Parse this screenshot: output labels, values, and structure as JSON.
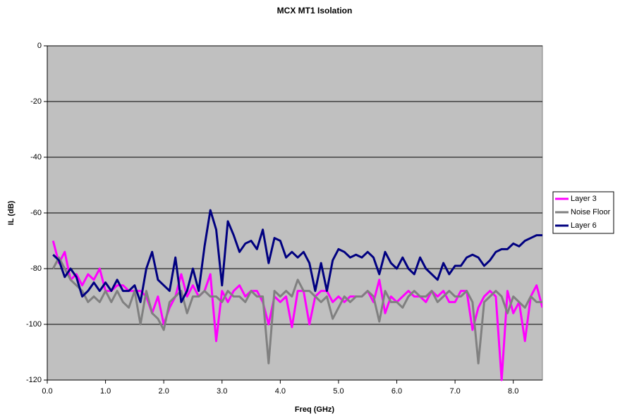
{
  "chart_data": {
    "type": "line",
    "title": "MCX MT1 Isolation",
    "x_label": "Freq (GHz)",
    "y_label": "IL (dB)",
    "x": [
      0.1,
      0.2,
      0.3,
      0.4,
      0.5,
      0.6,
      0.7,
      0.8,
      0.9,
      1.0,
      1.1,
      1.2,
      1.3,
      1.4,
      1.5,
      1.6,
      1.7,
      1.8,
      1.9,
      2.0,
      2.1,
      2.2,
      2.3,
      2.4,
      2.5,
      2.6,
      2.7,
      2.8,
      2.9,
      3.0,
      3.1,
      3.2,
      3.3,
      3.4,
      3.5,
      3.6,
      3.7,
      3.8,
      3.9,
      4.0,
      4.1,
      4.2,
      4.3,
      4.4,
      4.5,
      4.6,
      4.7,
      4.8,
      4.9,
      5.0,
      5.1,
      5.2,
      5.3,
      5.4,
      5.5,
      5.6,
      5.7,
      5.8,
      5.9,
      6.0,
      6.1,
      6.2,
      6.3,
      6.4,
      6.5,
      6.6,
      6.7,
      6.8,
      6.9,
      7.0,
      7.1,
      7.2,
      7.3,
      7.4,
      7.5,
      7.6,
      7.7,
      7.8,
      7.9,
      8.0,
      8.1,
      8.2,
      8.3,
      8.4,
      8.5
    ],
    "series": [
      {
        "name": "Layer 3",
        "color": "#ff00ff",
        "values": [
          -70,
          -78,
          -74,
          -84,
          -82,
          -86,
          -82,
          -84,
          -80,
          -88,
          -88,
          -86,
          -86,
          -88,
          -88,
          -88,
          -90,
          -96,
          -90,
          -100,
          -94,
          -90,
          -82,
          -90,
          -86,
          -90,
          -88,
          -82,
          -106,
          -88,
          -92,
          -88,
          -86,
          -90,
          -88,
          -88,
          -92,
          -100,
          -90,
          -92,
          -90,
          -101,
          -88,
          -88,
          -100,
          -90,
          -88,
          -88,
          -92,
          -90,
          -92,
          -90,
          -90,
          -90,
          -88,
          -92,
          -84,
          -96,
          -90,
          -92,
          -90,
          -88,
          -90,
          -90,
          -92,
          -88,
          -90,
          -88,
          -92,
          -92,
          -88,
          -88,
          -102,
          -94,
          -90,
          -88,
          -90,
          -120,
          -88,
          -96,
          -92,
          -106,
          -90,
          -86,
          -94
        ]
      },
      {
        "name": "Noise Floor",
        "color": "#808080",
        "values": [
          -80,
          -76,
          -80,
          -84,
          -86,
          -88,
          -92,
          -90,
          -92,
          -88,
          -92,
          -88,
          -92,
          -94,
          -88,
          -100,
          -88,
          -96,
          -98,
          -102,
          -92,
          -90,
          -88,
          -96,
          -90,
          -90,
          -88,
          -90,
          -90,
          -92,
          -88,
          -90,
          -90,
          -92,
          -88,
          -90,
          -90,
          -114,
          -88,
          -90,
          -88,
          -90,
          -84,
          -88,
          -88,
          -90,
          -92,
          -90,
          -98,
          -94,
          -90,
          -92,
          -90,
          -90,
          -88,
          -90,
          -99,
          -88,
          -92,
          -92,
          -94,
          -90,
          -88,
          -90,
          -90,
          -88,
          -92,
          -90,
          -88,
          -90,
          -90,
          -88,
          -92,
          -114,
          -92,
          -90,
          -88,
          -90,
          -96,
          -90,
          -92,
          -94,
          -90,
          -92,
          -92
        ]
      },
      {
        "name": "Layer 6",
        "color": "#000080",
        "values": [
          -75,
          -77,
          -83,
          -80,
          -83,
          -90,
          -88,
          -85,
          -88,
          -85,
          -88,
          -84,
          -88,
          -88,
          -86,
          -92,
          -80,
          -74,
          -84,
          -86,
          -88,
          -76,
          -92,
          -88,
          -80,
          -88,
          -72,
          -59,
          -66,
          -86,
          -63,
          -68,
          -74,
          -71,
          -70,
          -73,
          -66,
          -78,
          -69,
          -70,
          -76,
          -74,
          -76,
          -74,
          -78,
          -88,
          -78,
          -88,
          -77,
          -73,
          -74,
          -76,
          -75,
          -76,
          -74,
          -76,
          -82,
          -74,
          -78,
          -80,
          -76,
          -80,
          -82,
          -76,
          -80,
          -82,
          -84,
          -78,
          -82,
          -79,
          -79,
          -76,
          -75,
          -76,
          -79,
          -77,
          -74,
          -73,
          -73,
          -71,
          -72,
          -70,
          -69,
          -68,
          -68
        ]
      }
    ],
    "xlim": [
      0,
      8.5
    ],
    "ylim": [
      -120,
      0
    ],
    "xticks": [
      {
        "value": 0,
        "label": "0.0"
      },
      {
        "value": 1,
        "label": "1.0"
      },
      {
        "value": 2,
        "label": "2.0"
      },
      {
        "value": 3,
        "label": "3.0"
      },
      {
        "value": 4,
        "label": "4.0"
      },
      {
        "value": 5,
        "label": "5.0"
      },
      {
        "value": 6,
        "label": "6.0"
      },
      {
        "value": 7,
        "label": "7.0"
      },
      {
        "value": 8,
        "label": "8.0"
      }
    ],
    "yticks": [
      0,
      -20,
      -40,
      -60,
      -80,
      -100,
      -120
    ],
    "grid": true,
    "legend": "right"
  }
}
